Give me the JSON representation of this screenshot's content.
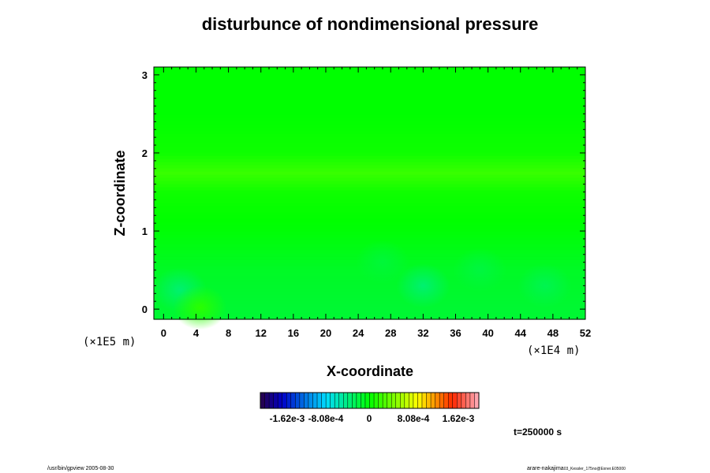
{
  "chart_data": {
    "type": "heatmap",
    "title": "disturbunce of nondimensional pressure",
    "xlabel": "X-coordinate",
    "ylabel": "Z-coordinate",
    "x_unit": "(×1E4 m)",
    "y_unit": "(×1E5 m)",
    "xlim": [
      -1.2,
      52
    ],
    "ylim": [
      -0.13,
      3.1
    ],
    "x_ticks": [
      "0",
      "4",
      "8",
      "12",
      "16",
      "20",
      "24",
      "28",
      "32",
      "36",
      "40",
      "44",
      "48",
      "52"
    ],
    "y_ticks": [
      "0",
      "1",
      "2",
      "3"
    ],
    "colorbar": {
      "range": [
        -0.002,
        0.002
      ],
      "tick_labels": [
        "-1.62e-3",
        "-8.08e-4",
        "0",
        "8.08e-4",
        "1.62e-3"
      ],
      "tick_values": [
        -0.00162,
        -0.000808,
        0,
        0.000808,
        0.00162
      ]
    },
    "field": {
      "x": [
        0,
        8,
        16,
        24,
        32,
        40,
        48,
        52
      ],
      "z": [
        0,
        0.5,
        1.0,
        1.5,
        1.75,
        2.0,
        2.5,
        3.0
      ],
      "values": [
        [
          -0.0002,
          -0.00015,
          -0.00015,
          -0.00015,
          -0.0002,
          -0.00015,
          -0.00015,
          -0.00015
        ],
        [
          -0.00015,
          -0.00012,
          -0.00012,
          -0.00012,
          -0.00012,
          -0.00012,
          -0.00012,
          -0.00012
        ],
        [
          -2e-05,
          -2e-05,
          -2e-05,
          -2e-05,
          -2e-05,
          -2e-05,
          -2e-05,
          -2e-05
        ],
        [
          5e-05,
          5e-05,
          5e-05,
          5e-05,
          5e-05,
          5e-05,
          5e-05,
          5e-05
        ],
        [
          0.0002,
          0.0002,
          0.0002,
          0.0002,
          0.0002,
          0.0002,
          0.0002,
          0.0002
        ],
        [
          5e-05,
          5e-05,
          5e-05,
          5e-05,
          5e-05,
          5e-05,
          5e-05,
          5e-05
        ],
        [
          0,
          0,
          0,
          0,
          0,
          0,
          0,
          0
        ],
        [
          0,
          0,
          0,
          0,
          0,
          0,
          0,
          0
        ]
      ],
      "local_minima": [
        {
          "x": 2,
          "z": 0.25,
          "value": -0.00035
        },
        {
          "x": 32,
          "z": 0.3,
          "value": -0.00035
        },
        {
          "x": 39,
          "z": 0.5,
          "value": -0.0002
        },
        {
          "x": 47,
          "z": 0.3,
          "value": -0.00025
        },
        {
          "x": 27,
          "z": 0.6,
          "value": -0.00018
        }
      ],
      "local_maxima": [
        {
          "x": 4.5,
          "z": 0.02,
          "value": 0.00015
        }
      ]
    },
    "time_label": "t=250000 s"
  },
  "footer": {
    "left": "/usr/bin/gpview 2005-08-30",
    "right": "arare-nakajima",
    "right_detail": "03_Kessler_175no@Exner.E05000"
  }
}
